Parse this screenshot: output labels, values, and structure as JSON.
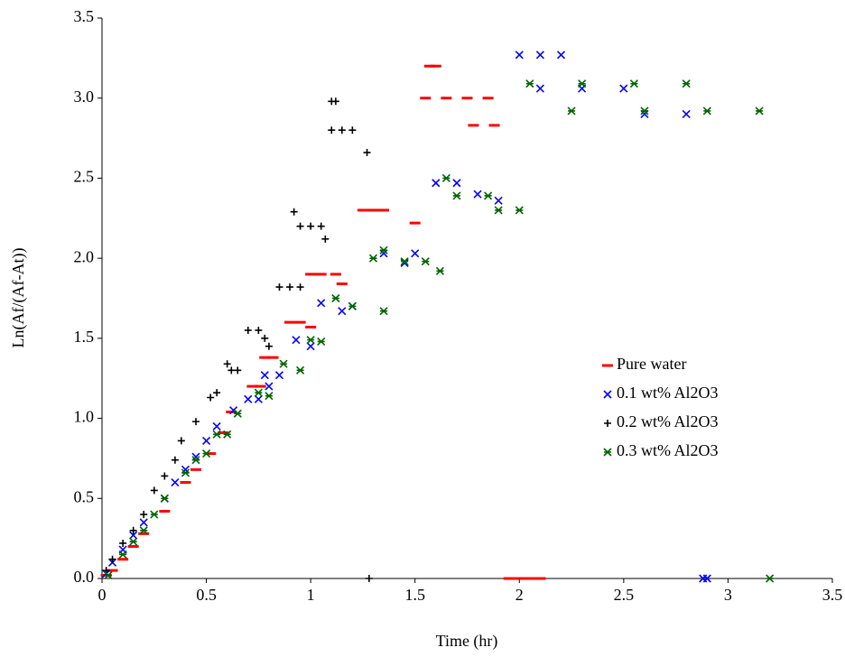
{
  "chart_data": {
    "type": "scatter",
    "x_label": "Time (hr)",
    "y_label": "Ln(Af/(Af-At))",
    "xlim": [
      0,
      3.5
    ],
    "ylim": [
      0,
      3.5
    ],
    "xticks": [
      0,
      0.5,
      1,
      1.5,
      2,
      2.5,
      3,
      3.5
    ],
    "yticks": [
      {
        "value": 0,
        "label": "0.0"
      },
      0.5,
      {
        "value": 1,
        "label": "1.0"
      },
      1.5,
      {
        "value": 2,
        "label": "2.0"
      },
      2.5,
      {
        "value": 3,
        "label": "3.0"
      },
      3.5
    ],
    "grid": false,
    "legend": "right",
    "series": [
      {
        "name": "Pure water",
        "color": "#ff0000",
        "marker": "dash",
        "x": [
          0.02,
          0.05,
          0.1,
          0.15,
          0.2,
          0.3,
          0.4,
          0.45,
          0.52,
          0.58,
          0.62,
          0.72,
          0.76,
          0.78,
          0.82,
          0.9,
          0.95,
          1.0,
          1.0,
          1.05,
          1.12,
          1.15,
          1.25,
          1.3,
          1.35,
          1.5,
          1.57,
          1.6,
          1.55,
          1.65,
          1.75,
          1.85,
          1.78,
          1.88,
          1.95,
          2.0,
          2.05,
          2.1
        ],
        "y": [
          0.02,
          0.05,
          0.12,
          0.2,
          0.28,
          0.42,
          0.6,
          0.68,
          0.78,
          0.91,
          1.04,
          1.2,
          1.2,
          1.38,
          1.38,
          1.6,
          1.6,
          1.57,
          1.9,
          1.9,
          1.9,
          1.84,
          2.3,
          2.3,
          2.3,
          2.22,
          3.2,
          3.2,
          3.0,
          3.0,
          3.0,
          3.0,
          2.83,
          2.83,
          0,
          0,
          0,
          0
        ]
      },
      {
        "name": "0.1 wt% Al2O3",
        "color": "#0000ff",
        "marker": "x",
        "x": [
          0.02,
          0.05,
          0.1,
          0.15,
          0.2,
          0.3,
          0.35,
          0.4,
          0.45,
          0.5,
          0.55,
          0.63,
          0.7,
          0.75,
          0.78,
          0.85,
          0.8,
          0.93,
          1.0,
          1.05,
          1.15,
          1.2,
          1.35,
          1.45,
          1.5,
          1.6,
          1.7,
          1.8,
          1.9,
          2.0,
          2.1,
          2.2,
          2.1,
          2.3,
          2.5,
          2.6,
          2.8,
          2.88,
          2.9
        ],
        "y": [
          0.03,
          0.1,
          0.18,
          0.27,
          0.35,
          0.5,
          0.6,
          0.68,
          0.76,
          0.86,
          0.95,
          1.05,
          1.12,
          1.12,
          1.27,
          1.27,
          1.2,
          1.49,
          1.45,
          1.72,
          1.67,
          1.7,
          2.03,
          1.97,
          2.03,
          2.47,
          2.47,
          2.4,
          2.36,
          3.27,
          3.27,
          3.27,
          3.06,
          3.06,
          3.06,
          2.9,
          2.9,
          0,
          0
        ]
      },
      {
        "name": "0.2 wt% Al2O3",
        "color": "#000000",
        "marker": "plus",
        "x": [
          0.02,
          0.05,
          0.1,
          0.15,
          0.2,
          0.25,
          0.3,
          0.35,
          0.38,
          0.45,
          0.52,
          0.55,
          0.6,
          0.62,
          0.65,
          0.7,
          0.75,
          0.78,
          0.8,
          0.85,
          0.9,
          0.95,
          0.92,
          0.95,
          1.0,
          1.05,
          1.07,
          1.1,
          1.12,
          1.1,
          1.15,
          1.2,
          1.27,
          1.28
        ],
        "y": [
          0.05,
          0.12,
          0.22,
          0.3,
          0.4,
          0.55,
          0.64,
          0.74,
          0.86,
          0.98,
          1.13,
          1.16,
          1.34,
          1.3,
          1.3,
          1.55,
          1.55,
          1.5,
          1.45,
          1.82,
          1.82,
          1.82,
          2.29,
          2.2,
          2.2,
          2.2,
          2.12,
          2.98,
          2.98,
          2.8,
          2.8,
          2.8,
          2.66,
          0
        ]
      },
      {
        "name": "0.3 wt% Al2O3",
        "color": "#006400",
        "marker": "star",
        "x": [
          0.03,
          0.1,
          0.15,
          0.2,
          0.25,
          0.3,
          0.4,
          0.45,
          0.5,
          0.55,
          0.6,
          0.65,
          0.75,
          0.8,
          0.87,
          0.95,
          1.0,
          1.05,
          1.12,
          1.2,
          1.35,
          1.3,
          1.35,
          1.45,
          1.55,
          1.62,
          1.65,
          1.7,
          1.85,
          1.9,
          2.0,
          2.05,
          2.3,
          2.55,
          2.8,
          2.25,
          2.6,
          2.9,
          3.15,
          3.2
        ],
        "y": [
          0.02,
          0.15,
          0.23,
          0.3,
          0.4,
          0.5,
          0.66,
          0.74,
          0.78,
          0.9,
          0.9,
          1.03,
          1.16,
          1.14,
          1.34,
          1.3,
          1.49,
          1.48,
          1.75,
          1.7,
          1.67,
          2.0,
          2.05,
          1.98,
          1.98,
          1.92,
          2.5,
          2.39,
          2.39,
          2.3,
          2.3,
          3.09,
          3.09,
          3.09,
          3.09,
          2.92,
          2.92,
          2.92,
          2.92,
          0
        ]
      }
    ]
  }
}
